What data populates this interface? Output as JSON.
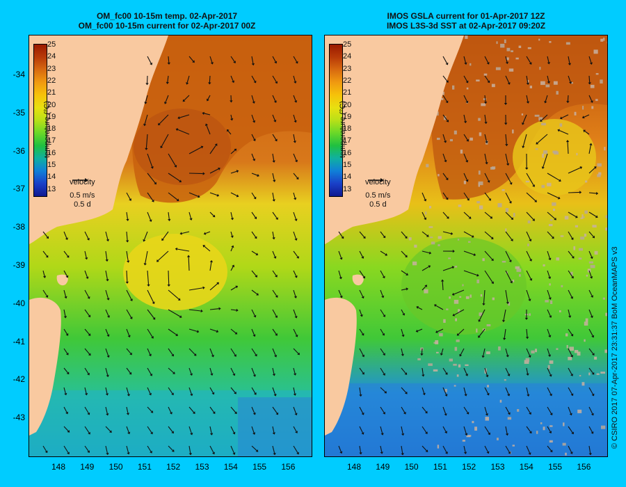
{
  "left": {
    "title1": "OM_fc00 10-15m temp. 02-Apr-2017",
    "title2": "OM_fc00 10-15m current for 02-Apr-2017 00Z"
  },
  "right": {
    "title1": "IMOS GSLA current for 01-Apr-2017 12Z",
    "title2": "IMOS L3S-3d SST at 02-Apr-2017 09:20Z"
  },
  "lat_ticks": [
    "-34",
    "-35",
    "-36",
    "-37",
    "-38",
    "-39",
    "-40",
    "-41",
    "-42",
    "-43"
  ],
  "lon_ticks": [
    "148",
    "149",
    "150",
    "151",
    "152",
    "153",
    "154",
    "155",
    "156"
  ],
  "colorbar": {
    "label": "temperature (°C)",
    "ticks": [
      "25",
      "24",
      "23",
      "22",
      "21",
      "20",
      "19",
      "18",
      "17",
      "16",
      "15",
      "14",
      "13"
    ],
    "colors": [
      "#9a1a00",
      "#b83a08",
      "#d86a10",
      "#f09a10",
      "#f6c20a",
      "#e8e010",
      "#b8e018",
      "#6ad828",
      "#20c040",
      "#10b0a0",
      "#1080d8",
      "#1a40c8",
      "#101890"
    ]
  },
  "velocity_legend": {
    "title": "velocity",
    "speed": "0.5 m/s",
    "time": "0.5 d"
  },
  "credit": "© CSIRO 2017   07-Apr-2017 23:31:37 BoM OceanMAPS v3",
  "colors": {
    "background": "#00ccff",
    "land": "#f9c9a0"
  }
}
